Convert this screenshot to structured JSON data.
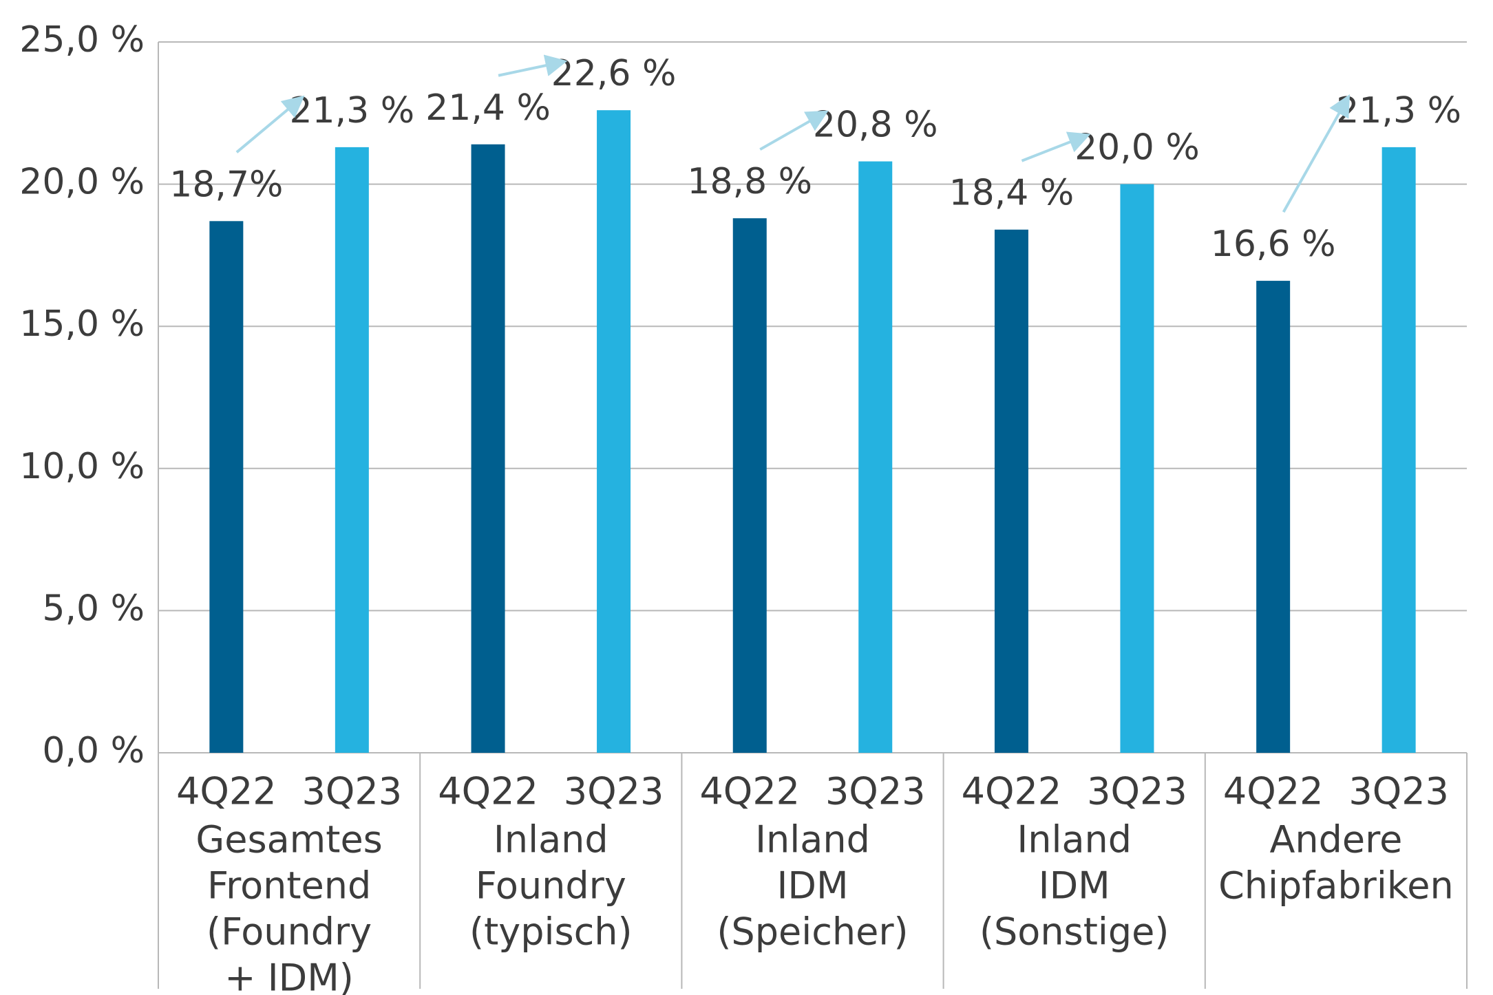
{
  "chart_data": {
    "type": "bar",
    "categories": [
      [
        "Gesamtes",
        "Frontend",
        "(Foundry",
        "+ IDM)"
      ],
      [
        "Inland",
        "Foundry",
        "(typisch)"
      ],
      [
        "Inland",
        "IDM",
        "(Speicher)"
      ],
      [
        "Inland",
        "IDM",
        "(Sonstige)"
      ],
      [
        "Andere",
        "Chipfabriken"
      ]
    ],
    "series": [
      {
        "name": "4Q22",
        "color": "#005f8f",
        "values": [
          18.7,
          21.4,
          18.8,
          18.4,
          16.6
        ],
        "value_labels": [
          "18,7%",
          "21,4 %",
          "18,8 %",
          "18,4 %",
          "16,6 %"
        ]
      },
      {
        "name": "3Q23",
        "color": "#25b2e0",
        "values": [
          21.3,
          22.6,
          20.8,
          20.0,
          21.3
        ],
        "value_labels": [
          "21,3 %",
          "22,6 %",
          "20,8 %",
          "20,0 %",
          "21,3 %"
        ]
      }
    ],
    "ylim": [
      0,
      25
    ],
    "yticks": [
      {
        "value": 0,
        "label": "0,0 %"
      },
      {
        "value": 5,
        "label": "5,0 %"
      },
      {
        "value": 10,
        "label": "10,0 %"
      },
      {
        "value": 15,
        "label": "15,0 %"
      },
      {
        "value": 20,
        "label": "20,0 %"
      },
      {
        "value": 25,
        "label": "25,0 %"
      }
    ],
    "grid": true
  }
}
